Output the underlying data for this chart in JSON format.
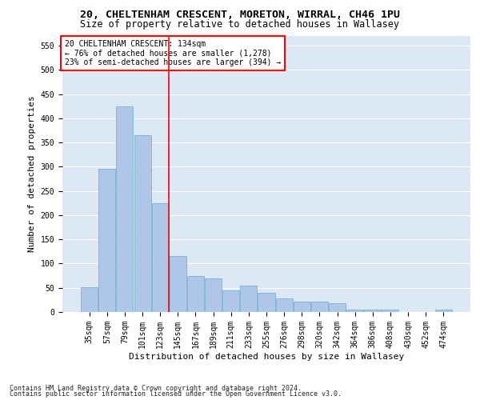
{
  "title_line1": "20, CHELTENHAM CRESCENT, MORETON, WIRRAL, CH46 1PU",
  "title_line2": "Size of property relative to detached houses in Wallasey",
  "xlabel": "Distribution of detached houses by size in Wallasey",
  "ylabel": "Number of detached properties",
  "categories": [
    "35sqm",
    "57sqm",
    "79sqm",
    "101sqm",
    "123sqm",
    "145sqm",
    "167sqm",
    "189sqm",
    "211sqm",
    "233sqm",
    "255sqm",
    "276sqm",
    "298sqm",
    "320sqm",
    "342sqm",
    "364sqm",
    "386sqm",
    "408sqm",
    "430sqm",
    "452sqm",
    "474sqm"
  ],
  "values": [
    52,
    295,
    425,
    365,
    225,
    115,
    75,
    70,
    45,
    55,
    40,
    28,
    22,
    22,
    18,
    5,
    5,
    5,
    0,
    0,
    5
  ],
  "bar_color": "#aec6e8",
  "bar_edge_color": "#6aaad4",
  "vline_color": "red",
  "vline_pos": 4.5,
  "annotation_box_text": "20 CHELTENHAM CRESCENT: 134sqm\n← 76% of detached houses are smaller (1,278)\n23% of semi-detached houses are larger (394) →",
  "annotation_box_color": "red",
  "footnote1": "Contains HM Land Registry data © Crown copyright and database right 2024.",
  "footnote2": "Contains public sector information licensed under the Open Government Licence v3.0.",
  "ylim": [
    0,
    570
  ],
  "yticks": [
    0,
    50,
    100,
    150,
    200,
    250,
    300,
    350,
    400,
    450,
    500,
    550
  ],
  "bg_color": "#dde8f5",
  "grid_color": "white",
  "title_fontsize": 9.5,
  "subtitle_fontsize": 8.5,
  "tick_fontsize": 7,
  "label_fontsize": 8,
  "annot_fontsize": 7
}
